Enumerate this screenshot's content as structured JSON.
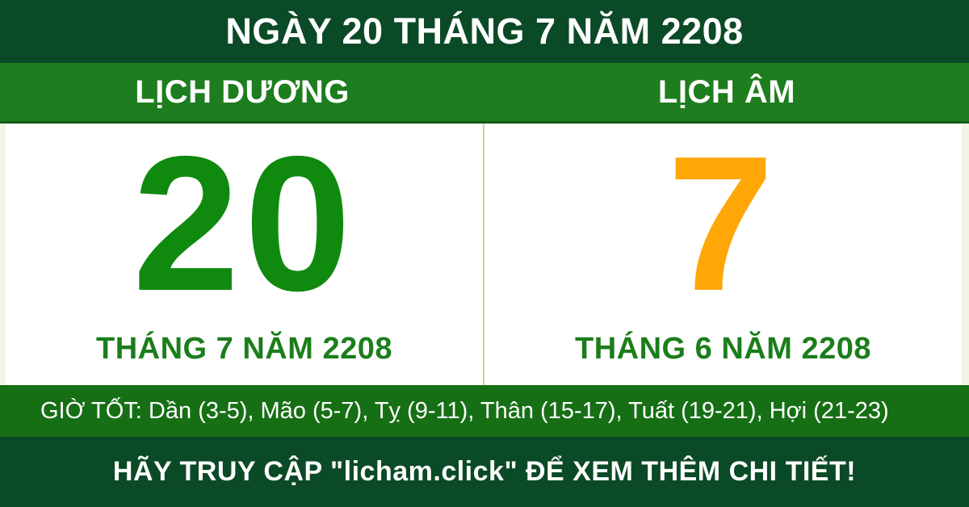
{
  "banner": {
    "title": "NGÀY 20 THÁNG 7 NĂM 2208"
  },
  "calendar": {
    "solar": {
      "header": "LỊCH DƯƠNG",
      "day": "20",
      "month_year": "THÁNG 7 NĂM 2208"
    },
    "lunar": {
      "header": "LỊCH ÂM",
      "day": "7",
      "month_year": "THÁNG 6 NĂM 2208"
    }
  },
  "good_hours": {
    "text": "GIỜ TỐT: Dần (3-5), Mão (5-7), Tỵ (9-11), Thân (15-17), Tuất (19-21), Hợi (21-23)"
  },
  "footer": {
    "cta": "HÃY TRUY CẬP \"licham.click\" ĐỂ XEM THÊM CHI TIẾT!"
  },
  "colors": {
    "dark_green": "#0b4a26",
    "band_green": "#1e7d1e",
    "hours_green": "#176f15",
    "day_green": "#0f8a0f",
    "day_orange": "#ffa707",
    "label_green": "#1b7e1b",
    "divider_light_green": "#c3dc96",
    "text_white": "#ffffff"
  }
}
